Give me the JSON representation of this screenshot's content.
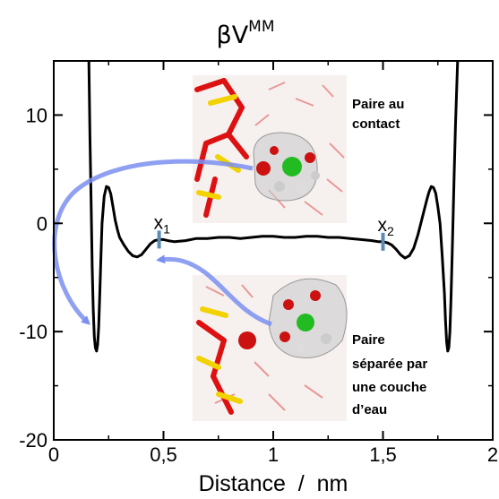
{
  "chart_data": {
    "type": "line",
    "title": "βV",
    "title_superscript": "MM",
    "xlabel": "Distance  /  nm",
    "ylabel": "",
    "xlim": [
      0,
      2
    ],
    "ylim": [
      -20,
      15
    ],
    "xticks": [
      0,
      0.5,
      1,
      1.5,
      2
    ],
    "xtick_labels": [
      "0",
      "0,5",
      "1",
      "1,5",
      "2"
    ],
    "yticks": [
      -20,
      -10,
      0,
      10
    ],
    "ytick_labels": [
      "-20",
      "-10",
      "0",
      "10"
    ],
    "grid": false,
    "series": [
      {
        "color": "#000000",
        "x": [
          0.16,
          0.165,
          0.17,
          0.175,
          0.18,
          0.185,
          0.19,
          0.195,
          0.2,
          0.205,
          0.21,
          0.215,
          0.22,
          0.23,
          0.24,
          0.25,
          0.26,
          0.27,
          0.28,
          0.29,
          0.3,
          0.32,
          0.34,
          0.36,
          0.38,
          0.4,
          0.42,
          0.44,
          0.46,
          0.48,
          0.5,
          0.52,
          0.55,
          0.6,
          0.65,
          0.7,
          0.75,
          0.8,
          0.85,
          0.9,
          0.95,
          1.0,
          1.05,
          1.1,
          1.15,
          1.2,
          1.25,
          1.3,
          1.35,
          1.4,
          1.45,
          1.48,
          1.5,
          1.52,
          1.54,
          1.56,
          1.58,
          1.6,
          1.62,
          1.64,
          1.66,
          1.68,
          1.7,
          1.71,
          1.72,
          1.73,
          1.74,
          1.75,
          1.76,
          1.77,
          1.78,
          1.785,
          1.79,
          1.795,
          1.8,
          1.805,
          1.81,
          1.815,
          1.82,
          1.825,
          1.83,
          1.835,
          1.84
        ],
        "y": [
          15,
          8,
          2,
          -4,
          -8,
          -10.5,
          -11.5,
          -11.8,
          -11.2,
          -9.5,
          -6.5,
          -3,
          0,
          2.5,
          3.4,
          3.3,
          2.7,
          1.5,
          0.3,
          -0.6,
          -1.3,
          -2,
          -2.6,
          -3.0,
          -3.1,
          -2.9,
          -2.4,
          -1.9,
          -1.6,
          -1.5,
          -1.5,
          -1.6,
          -1.7,
          -1.6,
          -1.4,
          -1.4,
          -1.3,
          -1.3,
          -1.4,
          -1.3,
          -1.2,
          -1.2,
          -1.3,
          -1.3,
          -1.2,
          -1.2,
          -1.3,
          -1.3,
          -1.4,
          -1.5,
          -1.6,
          -1.7,
          -1.7,
          -1.8,
          -2.0,
          -2.4,
          -2.9,
          -3.2,
          -3.0,
          -2.3,
          -1.0,
          0.6,
          2.2,
          2.9,
          3.4,
          3.3,
          2.8,
          1.5,
          0,
          -3,
          -6.5,
          -9,
          -11,
          -11.8,
          -11.5,
          -10,
          -7,
          -3,
          1,
          5,
          9,
          12,
          15
        ]
      }
    ],
    "markers": [
      {
        "x": 0.48,
        "y": -1.5,
        "label": "x",
        "sub": "1",
        "color": "#5b8ab8"
      },
      {
        "x": 1.5,
        "y": -1.7,
        "label": "x",
        "sub": "2",
        "color": "#5b8ab8"
      }
    ],
    "annotations": [
      {
        "id": "contact",
        "lines": [
          "Paire au",
          "contact"
        ]
      },
      {
        "id": "separated",
        "lines": [
          "Paire",
          "séparée par",
          "une couche",
          "d’eau"
        ]
      }
    ],
    "arrow_color": "#7b8ff0"
  }
}
